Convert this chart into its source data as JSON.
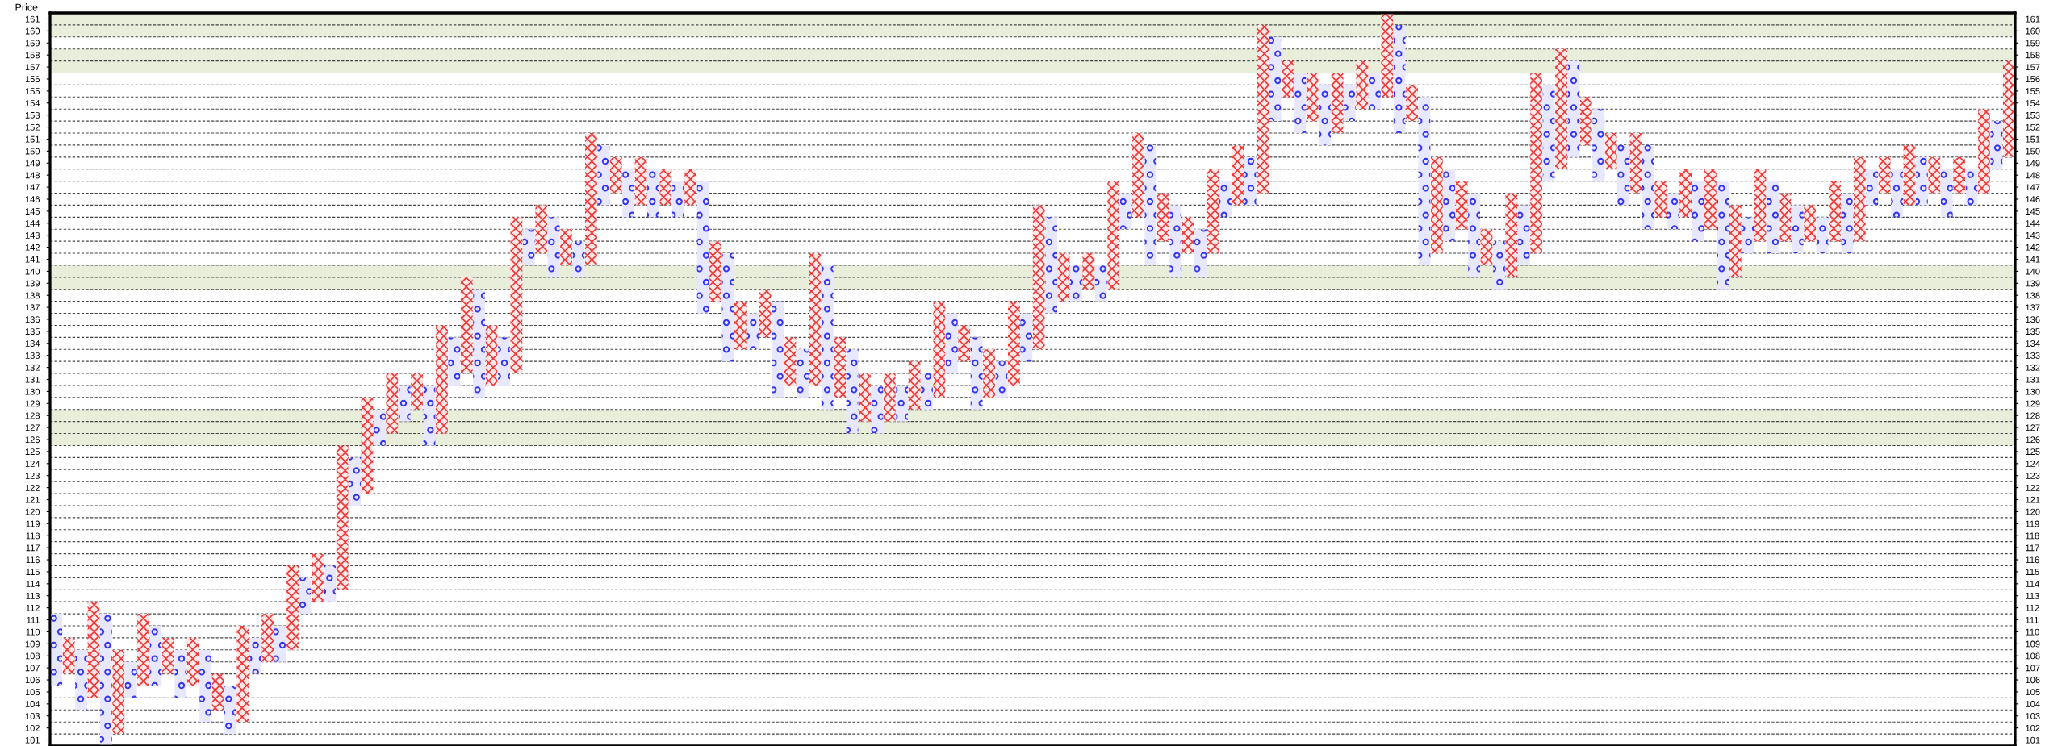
{
  "chart_data": {
    "type": "bar",
    "ylabel": "Price",
    "categories": [
      null,
      null,
      null,
      null,
      null,
      null,
      null,
      null,
      null,
      null,
      null,
      null,
      null,
      null,
      null,
      null,
      null,
      null,
      null,
      null,
      null,
      null,
      null,
      null,
      null,
      null,
      null,
      null,
      null,
      null,
      null,
      null,
      null,
      null,
      null,
      null,
      null,
      null,
      null,
      null,
      null,
      null,
      null,
      null,
      null,
      null,
      null,
      null,
      null,
      null,
      null,
      null,
      null,
      null,
      null,
      null,
      null,
      null,
      null,
      null,
      null,
      null,
      null,
      null,
      null,
      null,
      null,
      null,
      null,
      null,
      null,
      null,
      null,
      null,
      null,
      null,
      null,
      null,
      null,
      null,
      null,
      null,
      null,
      null,
      null,
      null,
      null,
      null,
      null,
      null,
      null,
      null,
      null,
      null,
      null,
      null,
      null,
      null,
      null,
      null,
      null,
      null,
      null,
      null,
      null,
      null,
      null,
      null,
      null,
      null,
      null,
      null,
      null,
      null,
      null,
      null,
      null,
      null,
      null,
      null,
      null,
      null,
      null,
      null,
      null,
      null,
      null,
      null,
      null,
      null,
      null,
      null,
      null,
      null,
      null,
      null,
      null,
      null,
      null,
      null,
      null,
      null,
      null,
      null,
      null,
      null,
      null,
      null,
      null,
      null,
      null,
      null,
      null,
      null,
      null,
      null,
      null,
      null
    ],
    "series": [
      {
        "color": "#3535f5",
        "marker": "circle",
        "base": [
          105.5,
          null,
          103.5,
          null,
          100.5,
          null,
          104.5,
          null,
          105.5,
          null,
          104.5,
          null,
          102.5,
          null,
          101.5,
          null,
          106.5,
          null,
          107.5,
          null,
          111.5,
          null,
          112.5,
          null,
          120.5,
          null,
          125.5,
          null,
          127.5,
          null,
          125.5,
          null,
          130.5,
          null,
          129.5,
          null,
          130.5,
          null,
          140.5,
          null,
          139.5,
          null,
          139.5,
          null,
          145.5,
          null,
          144.5,
          null,
          144.5,
          null,
          144.5,
          null,
          136.5,
          null,
          132.5,
          null,
          133.5,
          null,
          129.5,
          null,
          129.5,
          null,
          128.5,
          null,
          126.5,
          null,
          126.5,
          null,
          127.5,
          null,
          128.5,
          null,
          131.5,
          null,
          128.5,
          null,
          129.5,
          null,
          132.5,
          null,
          136.5,
          null,
          137.5,
          null,
          137.5,
          null,
          143.5,
          null,
          140.5,
          null,
          139.5,
          null,
          139.5,
          null,
          144.5,
          null,
          145.5,
          null,
          152.5,
          null,
          151.5,
          null,
          150.5,
          null,
          152.5,
          null,
          153.5,
          null,
          151.5,
          null,
          140.5,
          null,
          142.5,
          null,
          139.5,
          null,
          138.5,
          null,
          140.5,
          null,
          147.5,
          null,
          149.5,
          null,
          147.5,
          null,
          145.5,
          null,
          143.5,
          null,
          143.5,
          null,
          142.5,
          null,
          138.5,
          null,
          141.5,
          null,
          141.5,
          null,
          141.5,
          null,
          141.5,
          null,
          141.5,
          null,
          145.5,
          null,
          144.5,
          null,
          145.5,
          null,
          144.5,
          null,
          145.5,
          null,
          148.5,
          null
        ],
        "values": [
          6,
          null,
          5,
          null,
          11,
          null,
          3,
          null,
          5,
          null,
          4,
          null,
          6,
          null,
          4,
          null,
          3,
          null,
          3,
          null,
          3,
          null,
          3,
          null,
          4,
          null,
          3,
          null,
          3,
          null,
          5,
          null,
          4,
          null,
          9,
          null,
          4,
          null,
          3,
          null,
          5,
          null,
          3,
          null,
          5,
          null,
          4,
          null,
          4,
          null,
          3,
          null,
          11,
          null,
          9,
          null,
          3,
          null,
          8,
          null,
          4,
          null,
          12,
          null,
          7,
          null,
          4,
          null,
          3,
          null,
          3,
          null,
          5,
          null,
          6,
          null,
          3,
          null,
          4,
          null,
          8,
          null,
          3,
          null,
          3,
          null,
          3,
          null,
          10,
          null,
          6,
          null,
          4,
          null,
          3,
          null,
          4,
          null,
          7,
          null,
          5,
          null,
          5,
          null,
          3,
          null,
          3,
          null,
          9,
          null,
          14,
          null,
          6,
          null,
          7,
          null,
          4,
          null,
          5,
          null,
          8,
          null,
          8,
          null,
          6,
          null,
          5,
          null,
          7,
          null,
          3,
          null,
          5,
          null,
          9,
          null,
          3,
          null,
          6,
          null,
          4,
          null,
          3,
          null,
          5,
          null,
          3,
          null,
          4,
          null,
          4,
          null,
          4,
          null,
          3,
          null,
          4,
          null
        ]
      },
      {
        "color": "#f03838",
        "marker": "cross",
        "base": [
          null,
          106.5,
          null,
          104.5,
          null,
          101.5,
          null,
          105.5,
          null,
          106.5,
          null,
          105.5,
          null,
          103.5,
          null,
          102.5,
          null,
          107.5,
          null,
          108.5,
          null,
          112.5,
          null,
          113.5,
          null,
          121.5,
          null,
          126.5,
          null,
          128.5,
          null,
          126.5,
          null,
          131.5,
          null,
          130.5,
          null,
          131.5,
          null,
          141.5,
          null,
          140.5,
          null,
          140.5,
          null,
          146.5,
          null,
          145.5,
          null,
          145.5,
          null,
          145.5,
          null,
          137.5,
          null,
          133.5,
          null,
          134.5,
          null,
          130.5,
          null,
          130.5,
          null,
          129.5,
          null,
          127.5,
          null,
          127.5,
          null,
          128.5,
          null,
          129.5,
          null,
          132.5,
          null,
          129.5,
          null,
          130.5,
          null,
          133.5,
          null,
          137.5,
          null,
          138.5,
          null,
          138.5,
          null,
          144.5,
          null,
          142.5,
          null,
          141.5,
          null,
          141.5,
          null,
          145.5,
          null,
          146.5,
          null,
          154.5,
          null,
          152.5,
          null,
          151.5,
          null,
          153.5,
          null,
          154.5,
          null,
          152.5,
          null,
          141.5,
          null,
          143.5,
          null,
          140.5,
          null,
          139.5,
          null,
          141.5,
          null,
          148.5,
          null,
          150.5,
          null,
          148.5,
          null,
          146.5,
          null,
          144.5,
          null,
          144.5,
          null,
          143.5,
          null,
          139.5,
          null,
          142.5,
          null,
          142.5,
          null,
          142.5,
          null,
          142.5,
          null,
          142.5,
          null,
          146.5,
          null,
          145.5,
          null,
          146.5,
          null,
          146.5,
          null,
          146.5,
          null,
          149.5
        ],
        "values": [
          null,
          3,
          null,
          8,
          null,
          7,
          null,
          6,
          null,
          3,
          null,
          4,
          null,
          3,
          null,
          8,
          null,
          4,
          null,
          7,
          null,
          4,
          null,
          12,
          null,
          8,
          null,
          5,
          null,
          3,
          null,
          9,
          null,
          8,
          null,
          5,
          null,
          13,
          null,
          4,
          null,
          3,
          null,
          11,
          null,
          3,
          null,
          4,
          null,
          3,
          null,
          3,
          null,
          5,
          null,
          4,
          null,
          4,
          null,
          4,
          null,
          11,
          null,
          5,
          null,
          4,
          null,
          4,
          null,
          4,
          null,
          8,
          null,
          3,
          null,
          4,
          null,
          7,
          null,
          12,
          null,
          4,
          null,
          3,
          null,
          9,
          null,
          7,
          null,
          4,
          null,
          3,
          null,
          7,
          null,
          5,
          null,
          14,
          null,
          3,
          null,
          4,
          null,
          5,
          null,
          4,
          null,
          7,
          null,
          3,
          null,
          8,
          null,
          4,
          null,
          3,
          null,
          7,
          null,
          15,
          null,
          10,
          null,
          4,
          null,
          3,
          null,
          5,
          null,
          3,
          null,
          4,
          null,
          5,
          null,
          6,
          null,
          6,
          null,
          4,
          null,
          3,
          null,
          5,
          null,
          7,
          null,
          3,
          null,
          5,
          null,
          3,
          null,
          3,
          null,
          7,
          null,
          8
        ]
      }
    ],
    "ylim": [
      100.5,
      161.5
    ],
    "yticks": [
      101,
      102,
      103,
      104,
      105,
      106,
      107,
      108,
      109,
      110,
      111,
      112,
      113,
      114,
      115,
      116,
      117,
      118,
      119,
      120,
      121,
      122,
      123,
      124,
      125,
      126,
      127,
      128,
      129,
      130,
      131,
      132,
      133,
      134,
      135,
      136,
      137,
      138,
      139,
      140,
      141,
      142,
      143,
      144,
      145,
      146,
      147,
      148,
      149,
      150,
      151,
      152,
      153,
      154,
      155,
      156,
      157,
      158,
      159,
      160,
      161
    ],
    "y2lim": [
      100.5,
      161.5
    ],
    "y2ticks": [
      101,
      102,
      103,
      104,
      105,
      106,
      107,
      108,
      109,
      110,
      111,
      112,
      113,
      114,
      115,
      116,
      117,
      118,
      119,
      120,
      121,
      122,
      123,
      124,
      125,
      126,
      127,
      128,
      129,
      130,
      131,
      132,
      133,
      134,
      135,
      136,
      137,
      138,
      139,
      140,
      141,
      142,
      143,
      144,
      145,
      146,
      147,
      148,
      149,
      150,
      151,
      152,
      153,
      154,
      155,
      156,
      157,
      158,
      159,
      160,
      161
    ],
    "bands": [
      {
        "axis": "y",
        "from": 125.5,
        "to": 128.5,
        "color": "#e9eedb"
      },
      {
        "axis": "y",
        "from": 138.5,
        "to": 140.5,
        "color": "#e9eedb"
      },
      {
        "axis": "y",
        "from": 156.5,
        "to": 158.5,
        "color": "#e9eedb"
      },
      {
        "axis": "y",
        "from": 159.5,
        "to": 161.5,
        "color": "#e9eedb"
      }
    ],
    "grid": "y",
    "legend": false
  }
}
